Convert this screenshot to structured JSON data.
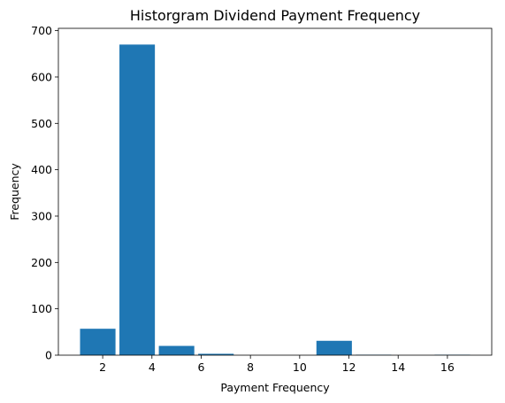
{
  "chart_data": {
    "type": "bar",
    "title": "Historgram Dividend Payment Frequency",
    "xlabel": "Payment Frequency",
    "ylabel": "Frequency",
    "xlim": [
      0.2,
      17.8
    ],
    "ylim": [
      0,
      705
    ],
    "xticks": [
      2,
      4,
      6,
      8,
      10,
      12,
      14,
      16
    ],
    "yticks": [
      0,
      100,
      200,
      300,
      400,
      500,
      600,
      700
    ],
    "bar_color": "#1f77b4",
    "bins": [
      {
        "x0": 1.0,
        "x1": 2.6,
        "value": 57
      },
      {
        "x0": 2.6,
        "x1": 4.2,
        "value": 670
      },
      {
        "x0": 4.2,
        "x1": 5.8,
        "value": 20
      },
      {
        "x0": 5.8,
        "x1": 7.4,
        "value": 3
      },
      {
        "x0": 7.4,
        "x1": 9.0,
        "value": 0
      },
      {
        "x0": 9.0,
        "x1": 10.6,
        "value": 0
      },
      {
        "x0": 10.6,
        "x1": 12.2,
        "value": 31
      },
      {
        "x0": 12.2,
        "x1": 13.8,
        "value": 1
      },
      {
        "x0": 13.8,
        "x1": 15.4,
        "value": 0
      },
      {
        "x0": 15.4,
        "x1": 17.0,
        "value": 1
      }
    ],
    "bar_width_fraction": 0.9,
    "grid": false,
    "legend": "none"
  }
}
